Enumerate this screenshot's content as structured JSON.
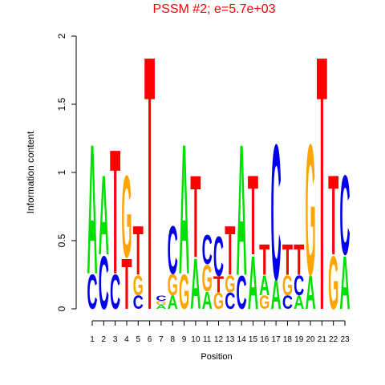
{
  "chart_data": {
    "type": "logo",
    "title": "PSSM #2; e=5.7e+03",
    "x_label": "Position",
    "y_label": "Information content",
    "ylim": [
      0,
      2
    ],
    "yticks": [
      0,
      0.5,
      1,
      1.5,
      2
    ],
    "categories": [
      1,
      2,
      3,
      4,
      5,
      6,
      7,
      8,
      9,
      10,
      11,
      12,
      13,
      14,
      15,
      16,
      17,
      18,
      19,
      20,
      21,
      22,
      23
    ],
    "colors": {
      "A": "#00e000",
      "C": "#0000ee",
      "G": "#ffa500",
      "T": "#ff0000"
    },
    "title_color": "#ff0000",
    "stacks": [
      {
        "letters": [
          "C",
          "A"
        ],
        "values": [
          0.26,
          0.98
        ]
      },
      {
        "letters": [
          "C",
          "A"
        ],
        "values": [
          0.4,
          0.6
        ]
      },
      {
        "letters": [
          "C",
          "T"
        ],
        "values": [
          0.26,
          0.94
        ]
      },
      {
        "letters": [
          "T",
          "G"
        ],
        "values": [
          0.38,
          0.62
        ]
      },
      {
        "letters": [
          "C",
          "G",
          "T"
        ],
        "values": [
          0.1,
          0.15,
          0.37
        ]
      },
      {
        "letters": [
          "T"
        ],
        "values": [
          1.92
        ]
      },
      {
        "letters": [
          "A",
          "G",
          "C"
        ],
        "values": [
          0.03,
          0.03,
          0.04
        ]
      },
      {
        "letters": [
          "A",
          "G",
          "C"
        ],
        "values": [
          0.1,
          0.16,
          0.36
        ]
      },
      {
        "letters": [
          "G",
          "A"
        ],
        "values": [
          0.26,
          0.98
        ]
      },
      {
        "letters": [
          "A",
          "T"
        ],
        "values": [
          0.38,
          0.62
        ]
      },
      {
        "letters": [
          "A",
          "G",
          "C"
        ],
        "values": [
          0.13,
          0.2,
          0.22
        ]
      },
      {
        "letters": [
          "G",
          "T",
          "C"
        ],
        "values": [
          0.12,
          0.12,
          0.3
        ]
      },
      {
        "letters": [
          "C",
          "G",
          "T"
        ],
        "values": [
          0.12,
          0.13,
          0.37
        ]
      },
      {
        "letters": [
          "C",
          "A"
        ],
        "values": [
          0.25,
          0.99
        ]
      },
      {
        "letters": [
          "A",
          "T"
        ],
        "values": [
          0.4,
          0.6
        ]
      },
      {
        "letters": [
          "G",
          "A",
          "T"
        ],
        "values": [
          0.1,
          0.15,
          0.23
        ]
      },
      {
        "letters": [
          "A",
          "C"
        ],
        "values": [
          0.22,
          1.02
        ]
      },
      {
        "letters": [
          "C",
          "G",
          "T"
        ],
        "values": [
          0.1,
          0.15,
          0.23
        ]
      },
      {
        "letters": [
          "A",
          "C",
          "T"
        ],
        "values": [
          0.1,
          0.15,
          0.23
        ]
      },
      {
        "letters": [
          "A",
          "G"
        ],
        "values": [
          0.25,
          0.99
        ]
      },
      {
        "letters": [
          "T"
        ],
        "values": [
          1.92
        ]
      },
      {
        "letters": [
          "G",
          "T"
        ],
        "values": [
          0.4,
          0.6
        ]
      },
      {
        "letters": [
          "A",
          "C"
        ],
        "values": [
          0.4,
          0.6
        ]
      }
    ]
  }
}
